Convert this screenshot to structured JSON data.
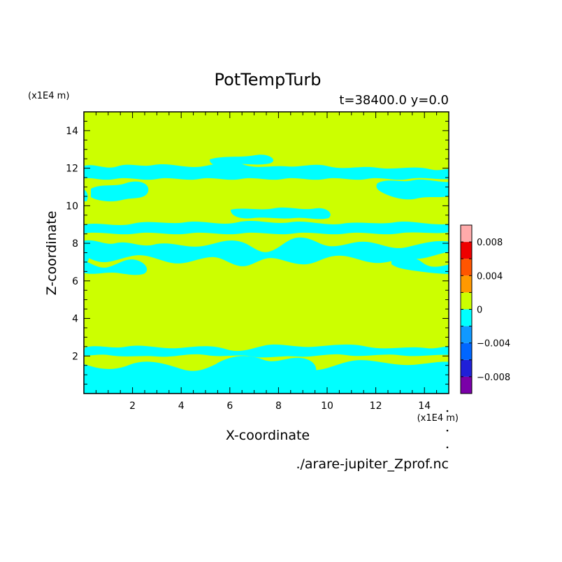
{
  "chart_data": {
    "type": "heatmap",
    "title": "PotTempTurb",
    "subtitle": "t=38400.0 y=0.0",
    "xlabel": "X-coordinate",
    "ylabel": "Z-coordinate",
    "x_unit": "(x1E4 m)",
    "y_unit": "(x1E4 m)",
    "source": "./arare-jupiter_Zprof.nc",
    "xlim": [
      0,
      15
    ],
    "ylim": [
      0,
      15
    ],
    "xticks": [
      2,
      4,
      6,
      8,
      10,
      12,
      14
    ],
    "yticks": [
      2,
      4,
      6,
      8,
      10,
      12,
      14
    ],
    "colorbar": {
      "levels": [
        -0.01,
        -0.008,
        -0.006,
        -0.004,
        -0.002,
        0,
        0.002,
        0.004,
        0.006,
        0.008,
        0.01
      ],
      "colors": [
        "#7a00a8",
        "#2020d8",
        "#0066ff",
        "#1099ff",
        "#00ffff",
        "#ccff00",
        "#ff9900",
        "#ff5500",
        "#ee0000",
        "#ffaaaa"
      ],
      "tick_values": [
        0.008,
        0.004,
        0,
        -0.004,
        -0.008
      ],
      "tick_labels": [
        "0.008",
        "0.004",
        "0",
        "−0.004",
        "−0.008"
      ]
    },
    "background_level": "0 to 0.002",
    "negative_bands": [
      {
        "level": "-0.002 to 0",
        "z_range": [
          0.2,
          2.6
        ]
      },
      {
        "level": "-0.002 to 0",
        "z_range": [
          6.3,
          9.3
        ]
      },
      {
        "level": "-0.002 to 0",
        "z_range": [
          10.2,
          12.5
        ]
      }
    ]
  }
}
